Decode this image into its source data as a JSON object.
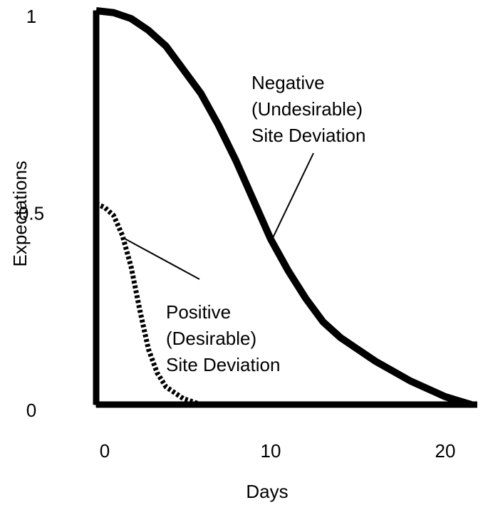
{
  "chart_data": {
    "type": "line",
    "xlabel": "Days",
    "ylabel": "Expectations",
    "xlim": [
      0,
      22
    ],
    "ylim": [
      0,
      1
    ],
    "xticks": [
      0,
      10,
      20
    ],
    "yticks": [
      0,
      0.5,
      1
    ],
    "grid": false,
    "series": [
      {
        "name": "Negative (Undesirable) Site Deviation",
        "color": "#000000",
        "style": "solid",
        "x": [
          0,
          1,
          2,
          3,
          4,
          5,
          6,
          7,
          8,
          9,
          10,
          11,
          12,
          13,
          14,
          16,
          18,
          20,
          21.5
        ],
        "values": [
          1.0,
          0.995,
          0.98,
          0.95,
          0.91,
          0.85,
          0.79,
          0.71,
          0.62,
          0.52,
          0.42,
          0.34,
          0.27,
          0.21,
          0.17,
          0.11,
          0.06,
          0.02,
          0
        ]
      },
      {
        "name": "Positive (Desirable) Site Deviation",
        "color": "#000000",
        "style": "dashed",
        "x": [
          0,
          0.5,
          1,
          1.5,
          2,
          2.5,
          3,
          3.5,
          4,
          5,
          6
        ],
        "values": [
          0.51,
          0.5,
          0.48,
          0.43,
          0.35,
          0.24,
          0.14,
          0.08,
          0.045,
          0.015,
          0
        ]
      }
    ],
    "annotations": [
      {
        "lines": [
          "Negative",
          "(Undesirable)",
          "Site Deviation"
        ]
      },
      {
        "lines": [
          "Positive",
          "(Desirable)",
          "Site Deviation"
        ]
      }
    ]
  }
}
